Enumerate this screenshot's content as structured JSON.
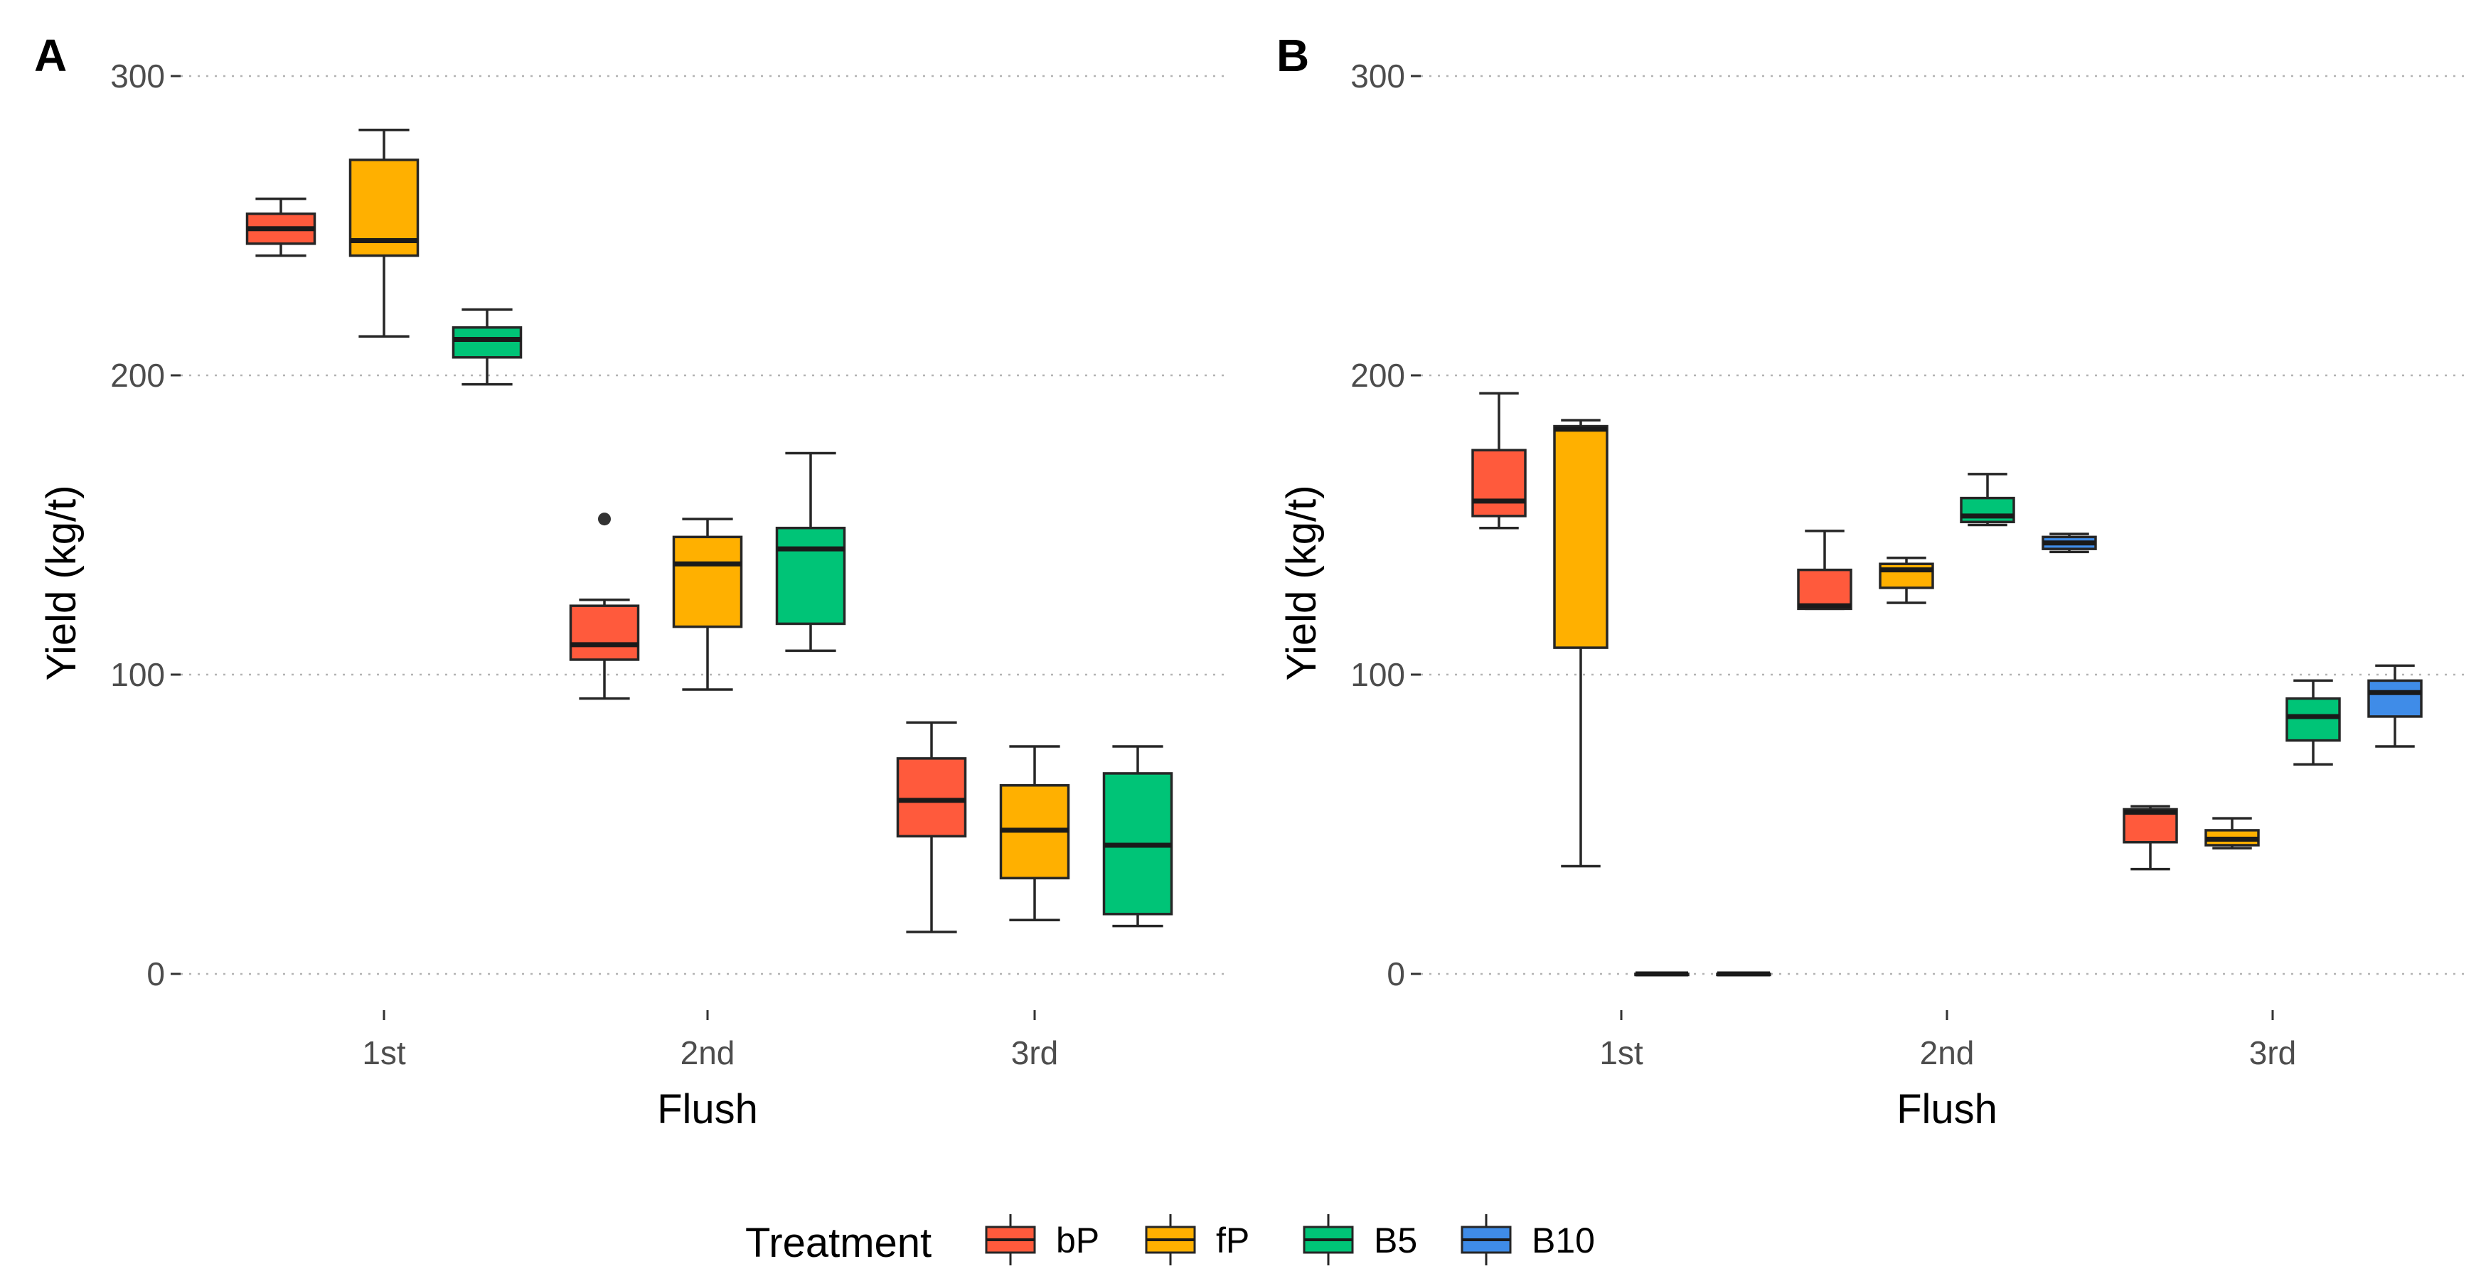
{
  "chart_data": [
    {
      "type": "boxplot",
      "panel": "A",
      "xlabel": "Flush",
      "ylabel": "Yield (kg/t)",
      "ylim": [
        -15,
        315
      ],
      "yticks": [
        0,
        100,
        200,
        300
      ],
      "categories": [
        "1st",
        "2nd",
        "3rd"
      ],
      "grid": "horizontal dotted",
      "boxes": [
        {
          "flush": "1st",
          "treatment": "bP",
          "whisker_low": 240,
          "q1": 244,
          "median": 249,
          "q3": 254,
          "whisker_high": 259,
          "outliers": []
        },
        {
          "flush": "1st",
          "treatment": "fP",
          "whisker_low": 213,
          "q1": 240,
          "median": 245,
          "q3": 272,
          "whisker_high": 282,
          "outliers": []
        },
        {
          "flush": "1st",
          "treatment": "B5",
          "whisker_low": 197,
          "q1": 206,
          "median": 212,
          "q3": 216,
          "whisker_high": 222,
          "outliers": []
        },
        {
          "flush": "2nd",
          "treatment": "bP",
          "whisker_low": 92,
          "q1": 105,
          "median": 110,
          "q3": 123,
          "whisker_high": 125,
          "outliers": [
            152
          ]
        },
        {
          "flush": "2nd",
          "treatment": "fP",
          "whisker_low": 95,
          "q1": 116,
          "median": 137,
          "q3": 146,
          "whisker_high": 152,
          "outliers": []
        },
        {
          "flush": "2nd",
          "treatment": "B5",
          "whisker_low": 108,
          "q1": 117,
          "median": 142,
          "q3": 149,
          "whisker_high": 174,
          "outliers": []
        },
        {
          "flush": "3rd",
          "treatment": "bP",
          "whisker_low": 14,
          "q1": 46,
          "median": 58,
          "q3": 72,
          "whisker_high": 84,
          "outliers": []
        },
        {
          "flush": "3rd",
          "treatment": "fP",
          "whisker_low": 18,
          "q1": 32,
          "median": 48,
          "q3": 63,
          "whisker_high": 76,
          "outliers": []
        },
        {
          "flush": "3rd",
          "treatment": "B5",
          "whisker_low": 16,
          "q1": 20,
          "median": 43,
          "q3": 67,
          "whisker_high": 76,
          "outliers": []
        }
      ]
    },
    {
      "type": "boxplot",
      "panel": "B",
      "xlabel": "Flush",
      "ylabel": "Yield (kg/t)",
      "ylim": [
        -15,
        315
      ],
      "yticks": [
        0,
        100,
        200,
        300
      ],
      "categories": [
        "1st",
        "2nd",
        "3rd"
      ],
      "grid": "horizontal dotted",
      "boxes": [
        {
          "flush": "1st",
          "treatment": "bP",
          "whisker_low": 149,
          "q1": 153,
          "median": 158,
          "q3": 175,
          "whisker_high": 194,
          "outliers": []
        },
        {
          "flush": "1st",
          "treatment": "fP",
          "whisker_low": 36,
          "q1": 109,
          "median": 182,
          "q3": 183,
          "whisker_high": 185,
          "outliers": []
        },
        {
          "flush": "1st",
          "treatment": "B5",
          "whisker_low": 0,
          "q1": 0,
          "median": 0,
          "q3": 0,
          "whisker_high": 0,
          "outliers": []
        },
        {
          "flush": "1st",
          "treatment": "B10",
          "whisker_low": 0,
          "q1": 0,
          "median": 0,
          "q3": 0,
          "whisker_high": 0,
          "outliers": []
        },
        {
          "flush": "2nd",
          "treatment": "bP",
          "whisker_low": 122,
          "q1": 122,
          "median": 123,
          "q3": 135,
          "whisker_high": 148,
          "outliers": []
        },
        {
          "flush": "2nd",
          "treatment": "fP",
          "whisker_low": 124,
          "q1": 129,
          "median": 135,
          "q3": 137,
          "whisker_high": 139,
          "outliers": []
        },
        {
          "flush": "2nd",
          "treatment": "B5",
          "whisker_low": 150,
          "q1": 151,
          "median": 153,
          "q3": 159,
          "whisker_high": 167,
          "outliers": []
        },
        {
          "flush": "2nd",
          "treatment": "B10",
          "whisker_low": 141,
          "q1": 142,
          "median": 144,
          "q3": 146,
          "whisker_high": 147,
          "outliers": []
        },
        {
          "flush": "3rd",
          "treatment": "bP",
          "whisker_low": 35,
          "q1": 44,
          "median": 54,
          "q3": 55,
          "whisker_high": 56,
          "outliers": []
        },
        {
          "flush": "3rd",
          "treatment": "fP",
          "whisker_low": 42,
          "q1": 43,
          "median": 45,
          "q3": 48,
          "whisker_high": 52,
          "outliers": []
        },
        {
          "flush": "3rd",
          "treatment": "B5",
          "whisker_low": 70,
          "q1": 78,
          "median": 86,
          "q3": 92,
          "whisker_high": 98,
          "outliers": []
        },
        {
          "flush": "3rd",
          "treatment": "B10",
          "whisker_low": 76,
          "q1": 86,
          "median": 94,
          "q3": 98,
          "whisker_high": 103,
          "outliers": []
        }
      ]
    }
  ],
  "legend": {
    "title": "Treatment",
    "position": "bottom",
    "items": [
      {
        "label": "bP",
        "color": "#FF5A3C"
      },
      {
        "label": "fP",
        "color": "#FFB000"
      },
      {
        "label": "B5",
        "color": "#00C477"
      },
      {
        "label": "B10",
        "color": "#3F8CE8"
      }
    ]
  },
  "colors": {
    "bP": "#FF5A3C",
    "fP": "#FFB000",
    "B5": "#00C477",
    "B10": "#3F8CE8",
    "outline": "#262626",
    "median": "#1a1a1a",
    "outlier": "#333333"
  }
}
